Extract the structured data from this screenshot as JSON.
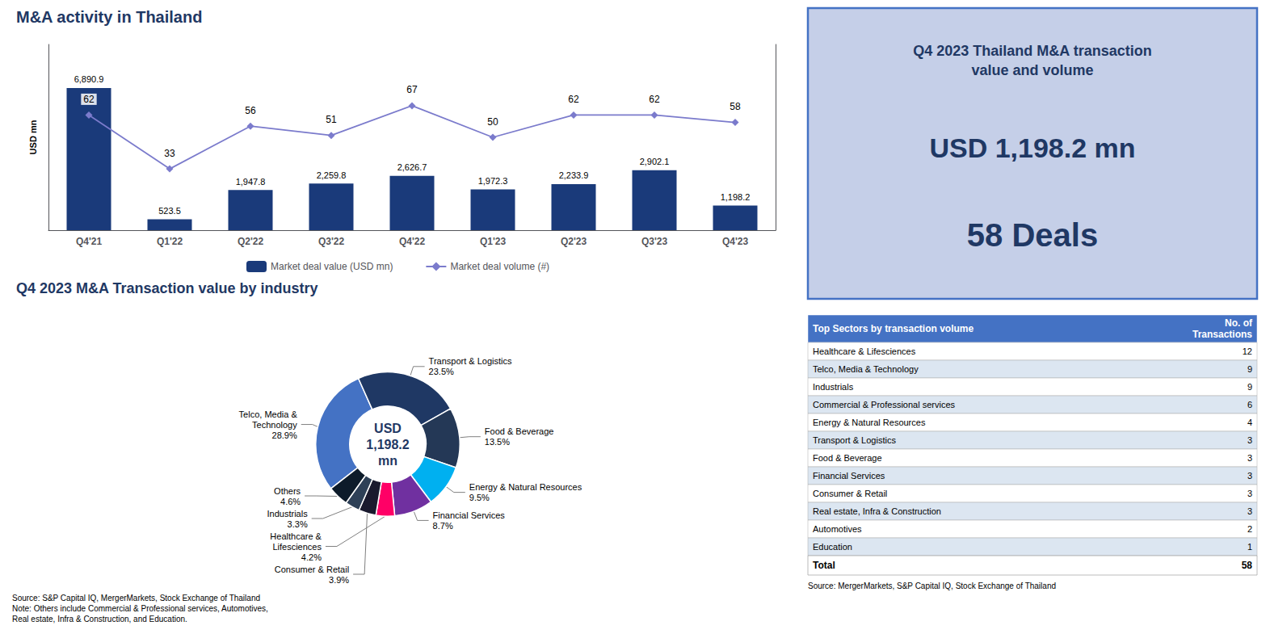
{
  "chart_data": [
    {
      "type": "bar",
      "title": "M&A activity in Thailand",
      "categories": [
        "Q4'21",
        "Q1'22",
        "Q2'22",
        "Q3'22",
        "Q4'22",
        "Q1'23",
        "Q2'23",
        "Q3'23",
        "Q4'23"
      ],
      "ylabel": "USD mn",
      "ylim": [
        0,
        9000
      ],
      "y2lim": [
        0,
        100
      ],
      "tick_labels": "x",
      "grid": false,
      "legend": "bottom",
      "data_labels": true,
      "series": [
        {
          "name": "Market deal value (USD mn)",
          "type": "bar",
          "color": "#1a3a7a",
          "values": [
            6890.9,
            523.5,
            1947.8,
            2259.8,
            2626.7,
            1972.3,
            2233.9,
            2902.1,
            1198.2
          ],
          "value_labels": [
            "6,890.9",
            "523.5",
            "1,947.8",
            "2,259.8",
            "2,626.7",
            "1,972.3",
            "2,233.9",
            "2,902.1",
            "1,198.2"
          ]
        },
        {
          "name": "Market deal volume (#)",
          "type": "line",
          "axis": "y2",
          "color": "#7b7bcc",
          "marker": "diamond",
          "values": [
            62,
            33,
            56,
            51,
            67,
            50,
            62,
            62,
            58
          ]
        }
      ]
    },
    {
      "type": "pie",
      "title": "Q4 2023 M&A Transaction value by industry",
      "categories": [
        "Telco, Media &\nTechnology",
        "Transport & Logistics",
        "Food & Beverage",
        "Energy & Natural Resources",
        "Financial Services",
        "Healthcare &\nLifesciences",
        "Consumer & Retail",
        "Industrials",
        "Others"
      ],
      "values": [
        28.9,
        23.5,
        13.5,
        9.5,
        8.7,
        4.2,
        3.9,
        3.3,
        4.6
      ],
      "value_labels": [
        "28.9%",
        "23.5%",
        "13.5%",
        "9.5%",
        "8.7%",
        "4.2%",
        "3.9%",
        "3.3%",
        "4.6%"
      ],
      "colors": [
        "#4472c4",
        "#1f3864",
        "#243856",
        "#00b0f0",
        "#7030a0",
        "#ff0066",
        "#1a1a2e",
        "#2e4057",
        "#0d1b2a"
      ],
      "data_labels": true,
      "center_text": "USD\n1,198.2\nmn",
      "source": "Source: S&P Capital IQ, MergerMarkets, Stock Exchange of Thailand\nNote: Others include Commercial & Professional services, Automotives,\nReal estate, Infra & Construction, and Education."
    },
    {
      "type": "text",
      "title": "Q4 2023 Thailand M&A transaction\nvalue and volume",
      "lines": [
        "USD 1,198.2 mn",
        "58 Deals"
      ],
      "color": "#1f3864"
    },
    {
      "type": "table",
      "columns": [
        "Top Sectors by transaction volume",
        "No. of\nTransactions"
      ],
      "rows": [
        [
          "Healthcare & Lifesciences",
          12
        ],
        [
          "Telco, Media & Technology",
          9
        ],
        [
          "Industrials",
          9
        ],
        [
          "Commercial & Professional services",
          6
        ],
        [
          "Energy & Natural Resources",
          4
        ],
        [
          "Transport & Logistics",
          3
        ],
        [
          "Food & Beverage",
          3
        ],
        [
          "Financial Services",
          3
        ],
        [
          "Consumer & Retail",
          3
        ],
        [
          "Real estate, Infra & Construction",
          3
        ],
        [
          "Automotives",
          2
        ],
        [
          "Education",
          1
        ]
      ],
      "total": [
        "Total",
        58
      ],
      "color": "#4472c4",
      "source": "Source: MergerMarkets, S&P Capital IQ, Stock Exchange of Thailand"
    }
  ]
}
